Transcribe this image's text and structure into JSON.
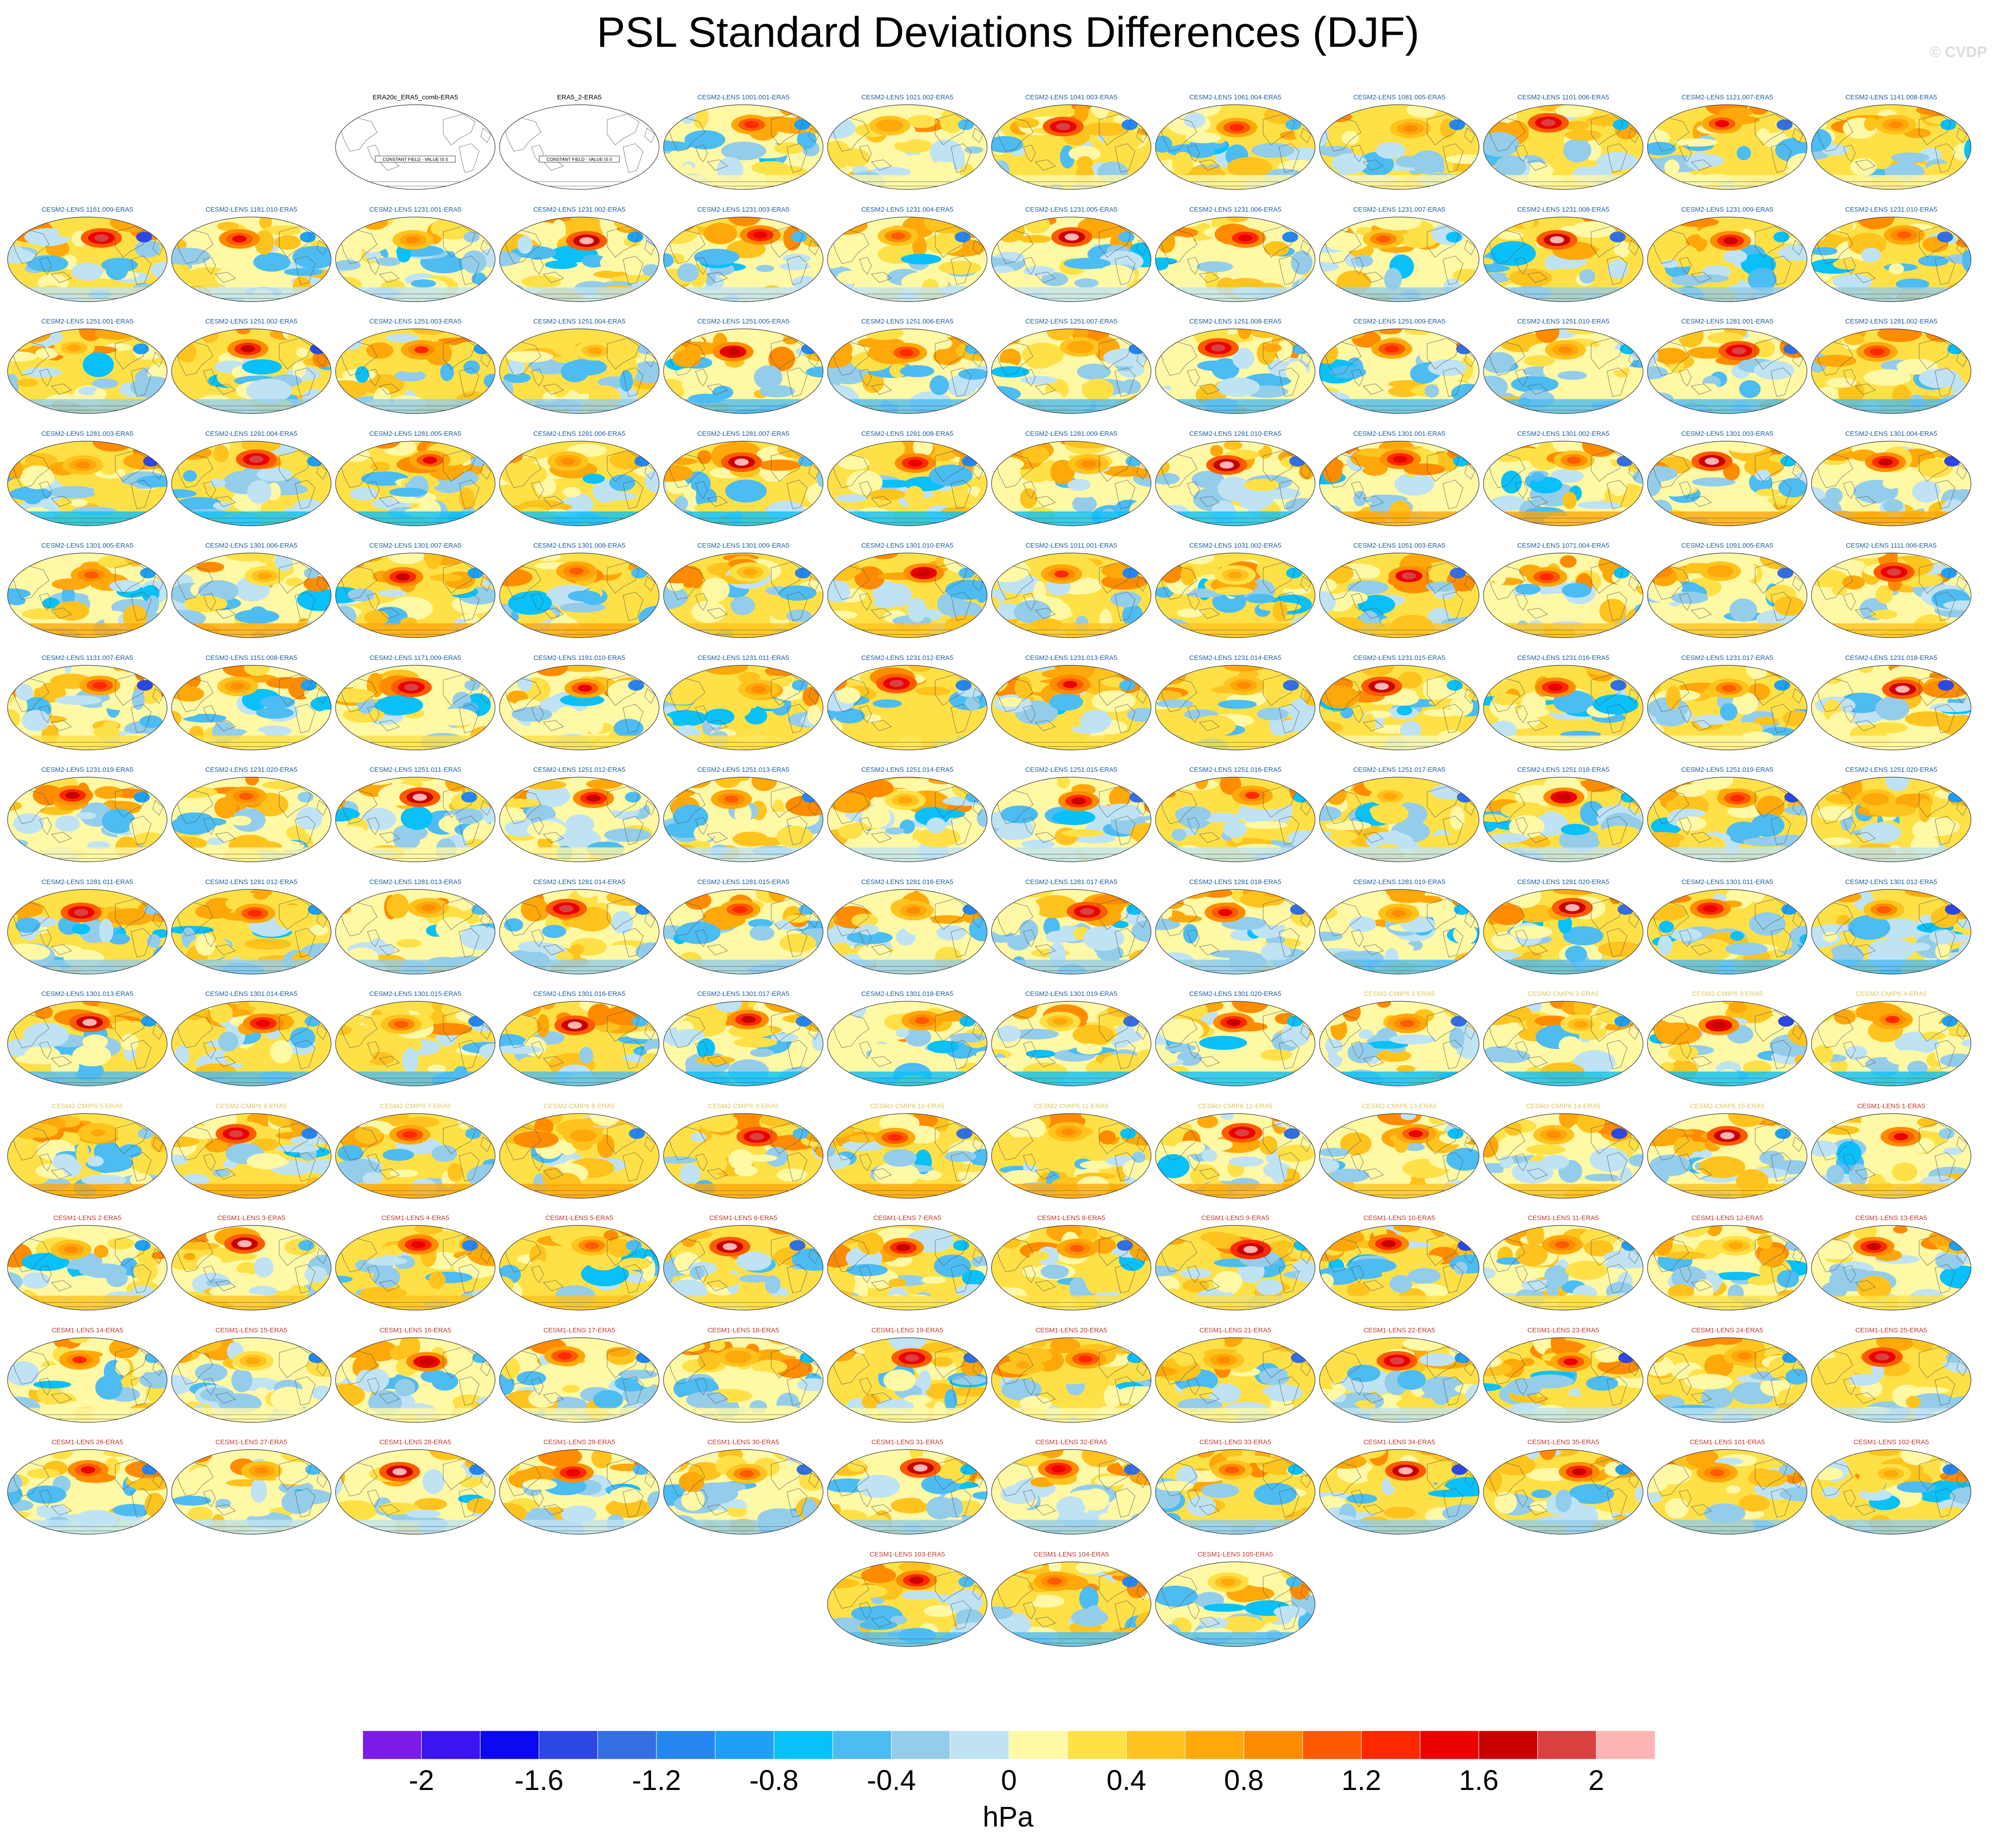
{
  "title": "PSL Standard Deviations Differences (DJF)",
  "watermark": "© CVDP",
  "units": "hPa",
  "projection": "robinson",
  "colorbar": {
    "levels": [
      -2.2,
      -2.0,
      -1.8,
      -1.6,
      -1.4,
      -1.2,
      -1.0,
      -0.8,
      -0.6,
      -0.4,
      -0.2,
      0.0,
      0.2,
      0.4,
      0.6,
      0.8,
      1.0,
      1.2,
      1.4,
      1.6,
      1.8,
      2.0,
      2.2
    ],
    "colors": [
      "#7a1be8",
      "#3c14f0",
      "#0a0af0",
      "#2d46e6",
      "#336fe3",
      "#2586f2",
      "#1ea0f5",
      "#0ac0fa",
      "#4dbcf2",
      "#94cdea",
      "#bfe3f3",
      "#fff8a5",
      "#ffe147",
      "#ffc31e",
      "#ffa80a",
      "#ff8c00",
      "#ff5a00",
      "#ff2800",
      "#eb0000",
      "#c80000",
      "#d94040",
      "#ffb4b4"
    ],
    "tick_labels": [
      "-2",
      "-1.6",
      "-1.2",
      "-0.8",
      "-0.4",
      "0",
      "0.4",
      "0.8",
      "1.2",
      "1.6",
      "2"
    ],
    "tick_values": [
      -2.0,
      -1.6,
      -1.2,
      -0.8,
      -0.4,
      0.0,
      0.4,
      0.8,
      1.2,
      1.6,
      2.0
    ]
  },
  "title_colors": {
    "obs": "#000000",
    "cesm2": "#1c5fa0",
    "cesm2_cmip6": "#e0c860",
    "cesm1": "#c0392b"
  },
  "panels": [
    {
      "title": "ERA20c_ERA5_comb-ERA5",
      "kind": "obs",
      "note": "CONSTANT FIELD - VALUE IS 0"
    },
    {
      "title": "ERA5_2-ERA5",
      "kind": "obs",
      "note": "CONSTANT FIELD - VALUE IS 0"
    },
    {
      "title": "CESM2-LENS 1001.001-ERA5",
      "kind": "cesm2"
    },
    {
      "title": "CESM2-LENS 1021.002-ERA5",
      "kind": "cesm2"
    },
    {
      "title": "CESM2-LENS 1041.003-ERA5",
      "kind": "cesm2"
    },
    {
      "title": "CESM2-LENS 1061.004-ERA5",
      "kind": "cesm2"
    },
    {
      "title": "CESM2-LENS 1081.005-ERA5",
      "kind": "cesm2"
    },
    {
      "title": "CESM2-LENS 1101.006-ERA5",
      "kind": "cesm2"
    },
    {
      "title": "CESM2-LENS 1121.007-ERA5",
      "kind": "cesm2"
    },
    {
      "title": "CESM2-LENS 1141.008-ERA5",
      "kind": "cesm2"
    },
    {
      "title": "CESM2-LENS 1161.009-ERA5",
      "kind": "cesm2"
    },
    {
      "title": "CESM2-LENS 1181.010-ERA5",
      "kind": "cesm2"
    },
    {
      "title": "CESM2-LENS 1231.001-ERA5",
      "kind": "cesm2"
    },
    {
      "title": "CESM2-LENS 1231.002-ERA5",
      "kind": "cesm2"
    },
    {
      "title": "CESM2-LENS 1231.003-ERA5",
      "kind": "cesm2"
    },
    {
      "title": "CESM2-LENS 1231.004-ERA5",
      "kind": "cesm2"
    },
    {
      "title": "CESM2-LENS 1231.005-ERA5",
      "kind": "cesm2"
    },
    {
      "title": "CESM2-LENS 1231.006-ERA5",
      "kind": "cesm2"
    },
    {
      "title": "CESM2-LENS 1231.007-ERA5",
      "kind": "cesm2"
    },
    {
      "title": "CESM2-LENS 1231.008-ERA5",
      "kind": "cesm2"
    },
    {
      "title": "CESM2-LENS 1231.009-ERA5",
      "kind": "cesm2"
    },
    {
      "title": "CESM2-LENS 1231.010-ERA5",
      "kind": "cesm2"
    },
    {
      "title": "CESM2-LENS 1251.001-ERA5",
      "kind": "cesm2"
    },
    {
      "title": "CESM2-LENS 1251.002-ERA5",
      "kind": "cesm2"
    },
    {
      "title": "CESM2-LENS 1251.003-ERA5",
      "kind": "cesm2"
    },
    {
      "title": "CESM2-LENS 1251.004-ERA5",
      "kind": "cesm2"
    },
    {
      "title": "CESM2-LENS 1251.005-ERA5",
      "kind": "cesm2"
    },
    {
      "title": "CESM2-LENS 1251.006-ERA5",
      "kind": "cesm2"
    },
    {
      "title": "CESM2-LENS 1251.007-ERA5",
      "kind": "cesm2"
    },
    {
      "title": "CESM2-LENS 1251.008-ERA5",
      "kind": "cesm2"
    },
    {
      "title": "CESM2-LENS 1251.009-ERA5",
      "kind": "cesm2"
    },
    {
      "title": "CESM2-LENS 1251.010-ERA5",
      "kind": "cesm2"
    },
    {
      "title": "CESM2-LENS 1281.001-ERA5",
      "kind": "cesm2"
    },
    {
      "title": "CESM2-LENS 1281.002-ERA5",
      "kind": "cesm2"
    },
    {
      "title": "CESM2-LENS 1281.003-ERA5",
      "kind": "cesm2"
    },
    {
      "title": "CESM2-LENS 1281.004-ERA5",
      "kind": "cesm2"
    },
    {
      "title": "CESM2-LENS 1281.005-ERA5",
      "kind": "cesm2"
    },
    {
      "title": "CESM2-LENS 1281.006-ERA5",
      "kind": "cesm2"
    },
    {
      "title": "CESM2-LENS 1281.007-ERA5",
      "kind": "cesm2"
    },
    {
      "title": "CESM2-LENS 1281.008-ERA5",
      "kind": "cesm2"
    },
    {
      "title": "CESM2-LENS 1281.009-ERA5",
      "kind": "cesm2"
    },
    {
      "title": "CESM2-LENS 1281.010-ERA5",
      "kind": "cesm2"
    },
    {
      "title": "CESM2-LENS 1301.001-ERA5",
      "kind": "cesm2"
    },
    {
      "title": "CESM2-LENS 1301.002-ERA5",
      "kind": "cesm2"
    },
    {
      "title": "CESM2-LENS 1301.003-ERA5",
      "kind": "cesm2"
    },
    {
      "title": "CESM2-LENS 1301.004-ERA5",
      "kind": "cesm2"
    },
    {
      "title": "CESM2-LENS 1301.005-ERA5",
      "kind": "cesm2"
    },
    {
      "title": "CESM2-LENS 1301.006-ERA5",
      "kind": "cesm2"
    },
    {
      "title": "CESM2-LENS 1301.007-ERA5",
      "kind": "cesm2"
    },
    {
      "title": "CESM2-LENS 1301.008-ERA5",
      "kind": "cesm2"
    },
    {
      "title": "CESM2-LENS 1301.009-ERA5",
      "kind": "cesm2"
    },
    {
      "title": "CESM2-LENS 1301.010-ERA5",
      "kind": "cesm2"
    },
    {
      "title": "CESM2-LENS 1011.001-ERA5",
      "kind": "cesm2"
    },
    {
      "title": "CESM2-LENS 1031.002-ERA5",
      "kind": "cesm2"
    },
    {
      "title": "CESM2-LENS 1051.003-ERA5",
      "kind": "cesm2"
    },
    {
      "title": "CESM2-LENS 1071.004-ERA5",
      "kind": "cesm2"
    },
    {
      "title": "CESM2-LENS 1091.005-ERA5",
      "kind": "cesm2"
    },
    {
      "title": "CESM2-LENS 1111.006-ERA5",
      "kind": "cesm2"
    },
    {
      "title": "CESM2-LENS 1131.007-ERA5",
      "kind": "cesm2"
    },
    {
      "title": "CESM2-LENS 1151.008-ERA5",
      "kind": "cesm2"
    },
    {
      "title": "CESM2-LENS 1171.009-ERA5",
      "kind": "cesm2"
    },
    {
      "title": "CESM2-LENS 1191.010-ERA5",
      "kind": "cesm2"
    },
    {
      "title": "CESM2-LENS 1231.011-ERA5",
      "kind": "cesm2"
    },
    {
      "title": "CESM2-LENS 1231.012-ERA5",
      "kind": "cesm2"
    },
    {
      "title": "CESM2-LENS 1231.013-ERA5",
      "kind": "cesm2"
    },
    {
      "title": "CESM2-LENS 1231.014-ERA5",
      "kind": "cesm2"
    },
    {
      "title": "CESM2-LENS 1231.015-ERA5",
      "kind": "cesm2"
    },
    {
      "title": "CESM2-LENS 1231.016-ERA5",
      "kind": "cesm2"
    },
    {
      "title": "CESM2-LENS 1231.017-ERA5",
      "kind": "cesm2"
    },
    {
      "title": "CESM2-LENS 1231.018-ERA5",
      "kind": "cesm2"
    },
    {
      "title": "CESM2-LENS 1231.019-ERA5",
      "kind": "cesm2"
    },
    {
      "title": "CESM2-LENS 1231.020-ERA5",
      "kind": "cesm2"
    },
    {
      "title": "CESM2-LENS 1251.011-ERA5",
      "kind": "cesm2"
    },
    {
      "title": "CESM2-LENS 1251.012-ERA5",
      "kind": "cesm2"
    },
    {
      "title": "CESM2-LENS 1251.013-ERA5",
      "kind": "cesm2"
    },
    {
      "title": "CESM2-LENS 1251.014-ERA5",
      "kind": "cesm2"
    },
    {
      "title": "CESM2-LENS 1251.015-ERA5",
      "kind": "cesm2"
    },
    {
      "title": "CESM2-LENS 1251.016-ERA5",
      "kind": "cesm2"
    },
    {
      "title": "CESM2-LENS 1251.017-ERA5",
      "kind": "cesm2"
    },
    {
      "title": "CESM2-LENS 1251.018-ERA5",
      "kind": "cesm2"
    },
    {
      "title": "CESM2-LENS 1251.019-ERA5",
      "kind": "cesm2"
    },
    {
      "title": "CESM2-LENS 1251.020-ERA5",
      "kind": "cesm2"
    },
    {
      "title": "CESM2-LENS 1281.011-ERA5",
      "kind": "cesm2"
    },
    {
      "title": "CESM2-LENS 1281.012-ERA5",
      "kind": "cesm2"
    },
    {
      "title": "CESM2-LENS 1281.013-ERA5",
      "kind": "cesm2"
    },
    {
      "title": "CESM2-LENS 1281.014-ERA5",
      "kind": "cesm2"
    },
    {
      "title": "CESM2-LENS 1281.015-ERA5",
      "kind": "cesm2"
    },
    {
      "title": "CESM2-LENS 1281.016-ERA5",
      "kind": "cesm2"
    },
    {
      "title": "CESM2-LENS 1281.017-ERA5",
      "kind": "cesm2"
    },
    {
      "title": "CESM2-LENS 1281.018-ERA5",
      "kind": "cesm2"
    },
    {
      "title": "CESM2-LENS 1281.019-ERA5",
      "kind": "cesm2"
    },
    {
      "title": "CESM2-LENS 1281.020-ERA5",
      "kind": "cesm2"
    },
    {
      "title": "CESM2-LENS 1301.011-ERA5",
      "kind": "cesm2"
    },
    {
      "title": "CESM2-LENS 1301.012-ERA5",
      "kind": "cesm2"
    },
    {
      "title": "CESM2-LENS 1301.013-ERA5",
      "kind": "cesm2"
    },
    {
      "title": "CESM2-LENS 1301.014-ERA5",
      "kind": "cesm2"
    },
    {
      "title": "CESM2-LENS 1301.015-ERA5",
      "kind": "cesm2"
    },
    {
      "title": "CESM2-LENS 1301.016-ERA5",
      "kind": "cesm2"
    },
    {
      "title": "CESM2-LENS 1301.017-ERA5",
      "kind": "cesm2"
    },
    {
      "title": "CESM2-LENS 1301.018-ERA5",
      "kind": "cesm2"
    },
    {
      "title": "CESM2-LENS 1301.019-ERA5",
      "kind": "cesm2"
    },
    {
      "title": "CESM2-LENS 1301.020-ERA5",
      "kind": "cesm2"
    },
    {
      "title": "CESM2-CMIP6 1-ERA5",
      "kind": "cesm2_cmip6"
    },
    {
      "title": "CESM2-CMIP6 2-ERA5",
      "kind": "cesm2_cmip6"
    },
    {
      "title": "CESM2-CMIP6 3-ERA5",
      "kind": "cesm2_cmip6"
    },
    {
      "title": "CESM2-CMIP6 4-ERA5",
      "kind": "cesm2_cmip6"
    },
    {
      "title": "CESM2-CMIP6 5-ERA5",
      "kind": "cesm2_cmip6"
    },
    {
      "title": "CESM2-CMIP6 6-ERA5",
      "kind": "cesm2_cmip6"
    },
    {
      "title": "CESM2-CMIP6 7-ERA5",
      "kind": "cesm2_cmip6"
    },
    {
      "title": "CESM2-CMIP6 8-ERA5",
      "kind": "cesm2_cmip6"
    },
    {
      "title": "CESM2-CMIP6 9-ERA5",
      "kind": "cesm2_cmip6"
    },
    {
      "title": "CESM2-CMIP6 10-ERA5",
      "kind": "cesm2_cmip6"
    },
    {
      "title": "CESM2-CMIP6 11-ERA5",
      "kind": "cesm2_cmip6"
    },
    {
      "title": "CESM2-CMIP6 12-ERA5",
      "kind": "cesm2_cmip6"
    },
    {
      "title": "CESM2-CMIP6 13-ERA5",
      "kind": "cesm2_cmip6"
    },
    {
      "title": "CESM2-CMIP6 14-ERA5",
      "kind": "cesm2_cmip6"
    },
    {
      "title": "CESM2-CMIP6 15-ERA5",
      "kind": "cesm2_cmip6"
    },
    {
      "title": "CESM1-LENS 1-ERA5",
      "kind": "cesm1"
    },
    {
      "title": "CESM1-LENS 2-ERA5",
      "kind": "cesm1"
    },
    {
      "title": "CESM1-LENS 3-ERA5",
      "kind": "cesm1"
    },
    {
      "title": "CESM1-LENS 4-ERA5",
      "kind": "cesm1"
    },
    {
      "title": "CESM1-LENS 5-ERA5",
      "kind": "cesm1"
    },
    {
      "title": "CESM1-LENS 6-ERA5",
      "kind": "cesm1"
    },
    {
      "title": "CESM1-LENS 7-ERA5",
      "kind": "cesm1"
    },
    {
      "title": "CESM1-LENS 8-ERA5",
      "kind": "cesm1"
    },
    {
      "title": "CESM1-LENS 9-ERA5",
      "kind": "cesm1"
    },
    {
      "title": "CESM1-LENS 10-ERA5",
      "kind": "cesm1"
    },
    {
      "title": "CESM1-LENS 11-ERA5",
      "kind": "cesm1"
    },
    {
      "title": "CESM1-LENS 12-ERA5",
      "kind": "cesm1"
    },
    {
      "title": "CESM1-LENS 13-ERA5",
      "kind": "cesm1"
    },
    {
      "title": "CESM1-LENS 14-ERA5",
      "kind": "cesm1"
    },
    {
      "title": "CESM1-LENS 15-ERA5",
      "kind": "cesm1"
    },
    {
      "title": "CESM1-LENS 16-ERA5",
      "kind": "cesm1"
    },
    {
      "title": "CESM1-LENS 17-ERA5",
      "kind": "cesm1"
    },
    {
      "title": "CESM1-LENS 18-ERA5",
      "kind": "cesm1"
    },
    {
      "title": "CESM1-LENS 19-ERA5",
      "kind": "cesm1"
    },
    {
      "title": "CESM1-LENS 20-ERA5",
      "kind": "cesm1"
    },
    {
      "title": "CESM1-LENS 21-ERA5",
      "kind": "cesm1"
    },
    {
      "title": "CESM1-LENS 22-ERA5",
      "kind": "cesm1"
    },
    {
      "title": "CESM1-LENS 23-ERA5",
      "kind": "cesm1"
    },
    {
      "title": "CESM1-LENS 24-ERA5",
      "kind": "cesm1"
    },
    {
      "title": "CESM1-LENS 25-ERA5",
      "kind": "cesm1"
    },
    {
      "title": "CESM1-LENS 26-ERA5",
      "kind": "cesm1"
    },
    {
      "title": "CESM1-LENS 27-ERA5",
      "kind": "cesm1"
    },
    {
      "title": "CESM1-LENS 28-ERA5",
      "kind": "cesm1"
    },
    {
      "title": "CESM1-LENS 29-ERA5",
      "kind": "cesm1"
    },
    {
      "title": "CESM1-LENS 30-ERA5",
      "kind": "cesm1"
    },
    {
      "title": "CESM1-LENS 31-ERA5",
      "kind": "cesm1"
    },
    {
      "title": "CESM1-LENS 32-ERA5",
      "kind": "cesm1"
    },
    {
      "title": "CESM1-LENS 33-ERA5",
      "kind": "cesm1"
    },
    {
      "title": "CESM1-LENS 34-ERA5",
      "kind": "cesm1"
    },
    {
      "title": "CESM1-LENS 35-ERA5",
      "kind": "cesm1"
    },
    {
      "title": "CESM1-LENS 101-ERA5",
      "kind": "cesm1"
    },
    {
      "title": "CESM1-LENS 102-ERA5",
      "kind": "cesm1"
    },
    {
      "title": "CESM1-LENS 103-ERA5",
      "kind": "cesm1"
    },
    {
      "title": "CESM1-LENS 104-ERA5",
      "kind": "cesm1"
    },
    {
      "title": "CESM1-LENS 105-ERA5",
      "kind": "cesm1"
    }
  ]
}
